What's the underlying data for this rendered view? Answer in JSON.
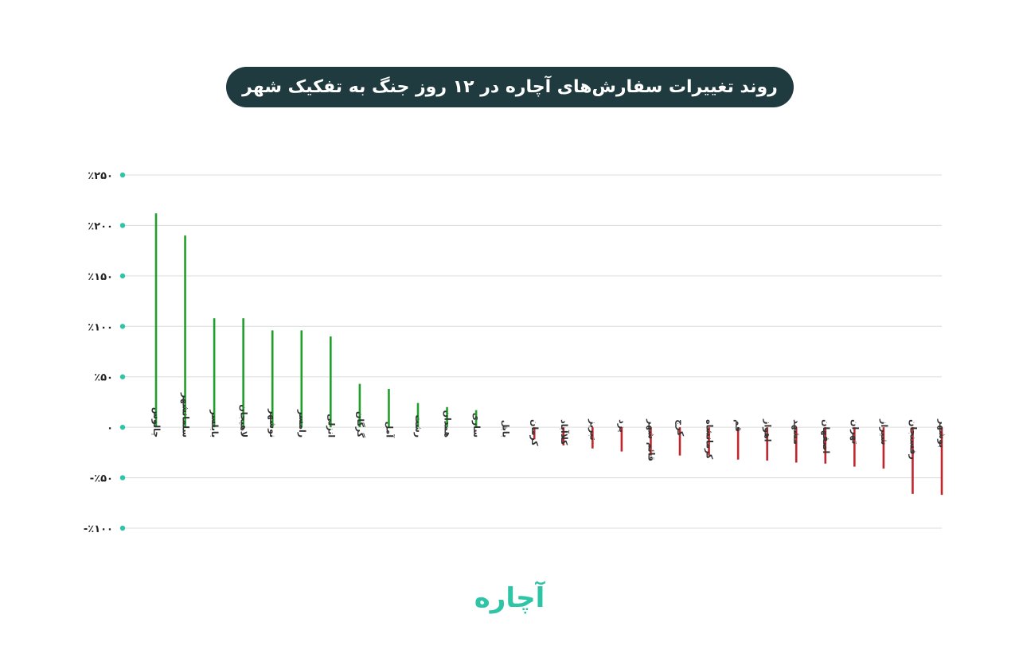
{
  "title": "روند تغییرات سفارش‌های آچاره در ۱۲ روز جنگ به تفکیک شهر",
  "logo_text": "آچاره",
  "colors": {
    "positive": "#1fa02a",
    "negative": "#c0262d",
    "zero": "#9a9a9a",
    "axis_dot": "#2ec4a6",
    "grid": "#dcdcdc",
    "title_bg": "#1f3b3f"
  },
  "chart_data": {
    "type": "bar",
    "ylim": [
      -100,
      250
    ],
    "yticks": [
      250,
      200,
      150,
      100,
      50,
      0,
      -50,
      -100
    ],
    "ytick_labels": [
      "٪۲۵۰",
      "٪۲۰۰",
      "٪۱۵۰",
      "٪۱۰۰",
      "٪۵۰",
      "۰",
      "-٪۵۰",
      "-٪۱۰۰"
    ],
    "grid": true,
    "categories": [
      "چالوس",
      "سلمانشهر",
      "بابلسر",
      "لاهیجان",
      "نوشهر",
      "رامسر",
      "انزلی",
      "گرگان",
      "آمل",
      "رشت",
      "همدان",
      "ساری",
      "بابل",
      "کرمان",
      "کلاآباد",
      "تبریز",
      "یزد",
      "قائم شهر",
      "کرج",
      "کرمانشاه",
      "قم",
      "اهواز",
      "مشهد",
      "اصفهان",
      "تهران",
      "شیراز",
      "رفسنجان",
      "بوشهر"
    ],
    "values": [
      212,
      190,
      108,
      108,
      96,
      96,
      90,
      43,
      38,
      24,
      20,
      17,
      0,
      -12,
      -18,
      -21,
      -24,
      -28,
      -28,
      -28,
      -32,
      -33,
      -35,
      -36,
      -39,
      -41,
      -66,
      -67
    ]
  }
}
